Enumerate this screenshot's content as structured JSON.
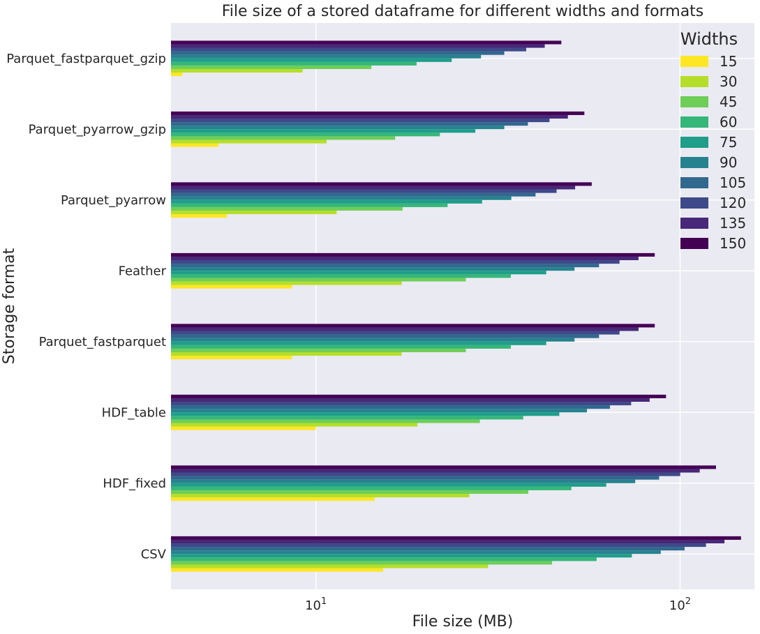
{
  "chart_data": {
    "type": "bar",
    "orientation": "horizontal",
    "title": "File size of a stored dataframe for different widths and formats",
    "xlabel": "File size (MB)",
    "ylabel": "Storage format",
    "xscale": "log",
    "xlim": [
      4.0,
      160
    ],
    "xticks": [
      {
        "value": 10,
        "base": "10",
        "exp": "1"
      },
      {
        "value": 100,
        "base": "10",
        "exp": "2"
      }
    ],
    "grid": true,
    "legend": {
      "title": "Widths",
      "position": "top-right"
    },
    "categories": [
      "Parquet_fastparquet_gzip",
      "Parquet_pyarrow_gzip",
      "Parquet_pyarrow",
      "Feather",
      "Parquet_fastparquet",
      "HDF_table",
      "HDF_fixed",
      "CSV"
    ],
    "series": [
      {
        "name": "15",
        "color": "#fde725",
        "values": [
          4.3,
          5.4,
          5.7,
          8.6,
          8.6,
          10.0,
          14.5,
          15.3
        ]
      },
      {
        "name": "30",
        "color": "#b5de2b",
        "values": [
          9.2,
          10.7,
          11.4,
          17.2,
          17.2,
          19.0,
          26.4,
          29.7
        ]
      },
      {
        "name": "45",
        "color": "#6ece58",
        "values": [
          14.2,
          16.5,
          17.3,
          25.8,
          25.8,
          28.2,
          38.3,
          44.5
        ]
      },
      {
        "name": "60",
        "color": "#35b779",
        "values": [
          18.9,
          21.9,
          23.0,
          34.3,
          34.3,
          37.1,
          50.3,
          59.0
        ]
      },
      {
        "name": "75",
        "color": "#1f9e89",
        "values": [
          23.6,
          27.4,
          28.6,
          42.9,
          42.9,
          46.6,
          62.7,
          73.7
        ]
      },
      {
        "name": "90",
        "color": "#26828e",
        "values": [
          28.4,
          32.9,
          34.4,
          51.3,
          51.3,
          55.5,
          75.3,
          88.5
        ]
      },
      {
        "name": "105",
        "color": "#31688e",
        "values": [
          32.9,
          38.2,
          40.1,
          59.9,
          59.9,
          64.2,
          87.6,
          102.9
        ]
      },
      {
        "name": "120",
        "color": "#3e4989",
        "values": [
          37.8,
          43.8,
          45.8,
          68.2,
          68.2,
          73.4,
          100.1,
          117.8
        ]
      },
      {
        "name": "135",
        "color": "#482878",
        "values": [
          42.5,
          49.2,
          51.5,
          76.9,
          76.9,
          82.5,
          113.2,
          132.4
        ]
      },
      {
        "name": "150",
        "color": "#440154",
        "values": [
          47.2,
          54.6,
          57.2,
          85.2,
          85.2,
          91.5,
          125.5,
          147.0
        ]
      }
    ]
  }
}
